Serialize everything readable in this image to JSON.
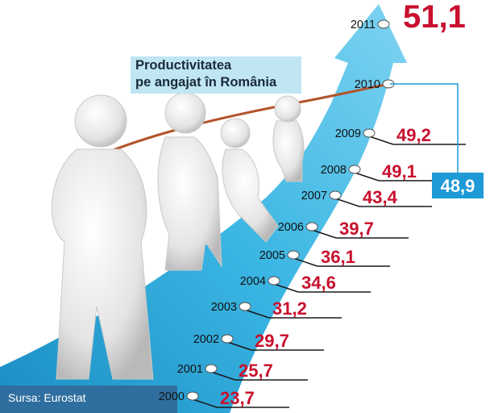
{
  "chart_data": {
    "type": "line",
    "title_lines": [
      "Productivitatea",
      "pe angajat în România"
    ],
    "source": "Sursa: Eurostat",
    "x": [
      "2000",
      "2001",
      "2002",
      "2003",
      "2004",
      "2005",
      "2006",
      "2007",
      "2008",
      "2009",
      "2010",
      "2011"
    ],
    "values": [
      23.7,
      25.7,
      29.7,
      31.2,
      34.6,
      36.1,
      39.7,
      43.4,
      49.1,
      49.2,
      48.9,
      51.1
    ],
    "value_labels": [
      "23,7",
      "25,7",
      "29,7",
      "31,2",
      "34,6",
      "36,1",
      "39,7",
      "43,4",
      "49,1",
      "49,2",
      "48,9",
      "51,1"
    ],
    "colors": {
      "value_text": "#c8102e",
      "arrow": "#29a8d8",
      "callout_box": "#1e9ad6"
    }
  }
}
